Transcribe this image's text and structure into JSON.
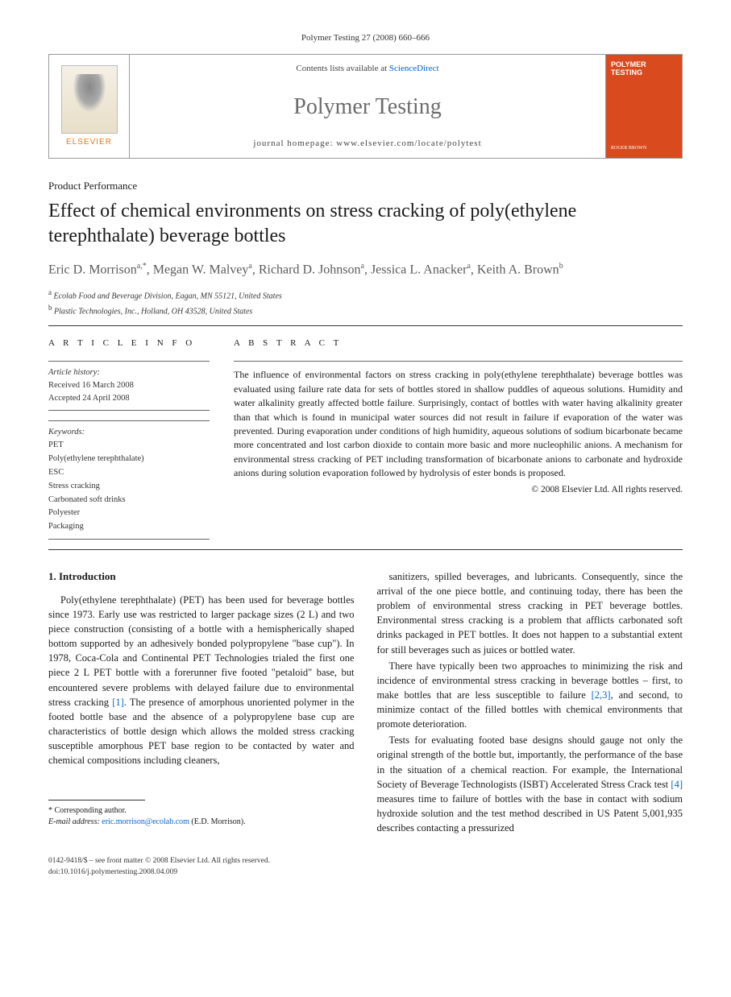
{
  "page_header": "Polymer Testing 27 (2008) 660–666",
  "banner": {
    "elsevier": "ELSEVIER",
    "contents_prefix": "Contents lists available at ",
    "contents_link": "ScienceDirect",
    "journal_name": "Polymer Testing",
    "homepage": "journal homepage: www.elsevier.com/locate/polytest",
    "cover_title": "POLYMER TESTING",
    "cover_editor": "ROGER BROWN"
  },
  "section_label": "Product Performance",
  "title": "Effect of chemical environments on stress cracking of poly(ethylene terephthalate) beverage bottles",
  "authors_html": "Eric D. Morrison<sup>a,*</sup>, Megan W. Malvey<sup>a</sup>, Richard D. Johnson<sup>a</sup>, Jessica L. Anacker<sup>a</sup>, Keith A. Brown<sup>b</sup>",
  "affiliations": {
    "a": "Ecolab Food and Beverage Division, Eagan, MN 55121, United States",
    "b": "Plastic Technologies, Inc., Holland, OH 43528, United States"
  },
  "info": {
    "head": "A R T I C L E   I N F O",
    "history_label": "Article history:",
    "received": "Received 16 March 2008",
    "accepted": "Accepted 24 April 2008",
    "keywords_label": "Keywords:",
    "keywords": [
      "PET",
      "Poly(ethylene terephthalate)",
      "ESC",
      "Stress cracking",
      "Carbonated soft drinks",
      "Polyester",
      "Packaging"
    ]
  },
  "abstract": {
    "head": "A B S T R A C T",
    "text": "The influence of environmental factors on stress cracking in poly(ethylene terephthalate) beverage bottles was evaluated using failure rate data for sets of bottles stored in shallow puddles of aqueous solutions. Humidity and water alkalinity greatly affected bottle failure. Surprisingly, contact of bottles with water having alkalinity greater than that which is found in municipal water sources did not result in failure if evaporation of the water was prevented. During evaporation under conditions of high humidity, aqueous solutions of sodium bicarbonate became more concentrated and lost carbon dioxide to contain more basic and more nucleophilic anions. A mechanism for environmental stress cracking of PET including transformation of bicarbonate anions to carbonate and hydroxide anions during solution evaporation followed by hydrolysis of ester bonds is proposed.",
    "copyright": "© 2008 Elsevier Ltd. All rights reserved."
  },
  "body": {
    "h1": "1. Introduction",
    "p1": "Poly(ethylene terephthalate) (PET) has been used for beverage bottles since 1973. Early use was restricted to larger package sizes (2 L) and two piece construction (consisting of a bottle with a hemispherically shaped bottom supported by an adhesively bonded polypropylene \"base cup\"). In 1978, Coca-Cola and Continental PET Technologies trialed the first one piece 2 L PET bottle with a forerunner five footed \"petaloid\" base, but encountered severe problems with delayed failure due to environmental stress cracking [1]. The presence of amorphous unoriented polymer in the footed bottle base and the absence of a polypropylene base cup are characteristics of bottle design which allows the molded stress cracking susceptible amorphous PET base region to be contacted by water and chemical compositions including cleaners,",
    "p2": "sanitizers, spilled beverages, and lubricants. Consequently, since the arrival of the one piece bottle, and continuing today, there has been the problem of environmental stress cracking in PET beverage bottles. Environmental stress cracking is a problem that afflicts carbonated soft drinks packaged in PET bottles. It does not happen to a substantial extent for still beverages such as juices or bottled water.",
    "p3": "There have typically been two approaches to minimizing the risk and incidence of environmental stress cracking in beverage bottles – first, to make bottles that are less susceptible to failure [2,3], and second, to minimize contact of the filled bottles with chemical environments that promote deterioration.",
    "p4": "Tests for evaluating footed base designs should gauge not only the original strength of the bottle but, importantly, the performance of the base in the situation of a chemical reaction. For example, the International Society of Beverage Technologists (ISBT) Accelerated Stress Crack test [4] measures time to failure of bottles with the base in contact with sodium hydroxide solution and the test method described in US Patent 5,001,935 describes contacting a pressurized"
  },
  "footnote": {
    "corr": "* Corresponding author.",
    "email_label": "E-mail address:",
    "email": "eric.morrison@ecolab.com",
    "email_who": "(E.D. Morrison)."
  },
  "footer": {
    "line1": "0142-9418/$ – see front matter © 2008 Elsevier Ltd. All rights reserved.",
    "line2": "doi:10.1016/j.polymertesting.2008.04.009"
  },
  "colors": {
    "link": "#0066cc",
    "elsevier_orange": "#e67817",
    "cover_bg": "#d94a1f",
    "journal_gray": "#6b6b6b"
  }
}
